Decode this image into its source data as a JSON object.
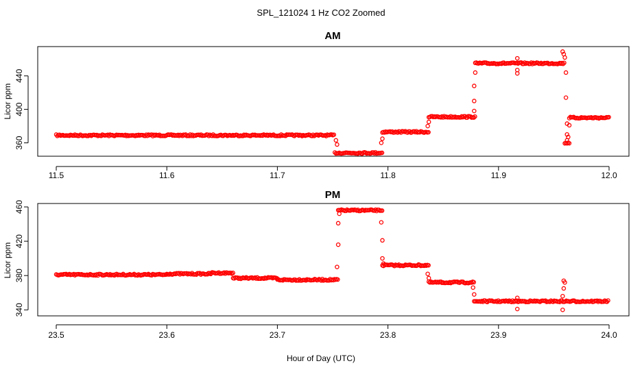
{
  "figure": {
    "title": "SPL_121024  1 Hz CO2 Zoomed",
    "xlabel": "Hour of Day (UTC)"
  },
  "colors": {
    "points": "#ff0000",
    "axes": "#000000",
    "background": "#ffffff"
  },
  "chart_data": [
    {
      "type": "scatter",
      "title": "AM",
      "xlabel": "",
      "ylabel": "Licor ppm",
      "xlim": [
        11.5,
        12.0
      ],
      "ylim": [
        344,
        475
      ],
      "xticks": [
        "11.5",
        "11.6",
        "11.7",
        "11.8",
        "11.9",
        "12.0"
      ],
      "yticks": [
        "360",
        "400",
        "440"
      ],
      "grid": false,
      "levels": [
        [
          11.5,
          11.752,
          369
        ],
        [
          11.752,
          11.795,
          348
        ],
        [
          11.795,
          11.837,
          373
        ],
        [
          11.837,
          11.879,
          391
        ],
        [
          11.879,
          11.96,
          455
        ],
        [
          11.96,
          11.964,
          360
        ],
        [
          11.964,
          12.0,
          390
        ]
      ],
      "outliers": [
        [
          11.753,
          363
        ],
        [
          11.754,
          358
        ],
        [
          11.794,
          360
        ],
        [
          11.795,
          365
        ],
        [
          11.836,
          380
        ],
        [
          11.837,
          385
        ],
        [
          11.878,
          398
        ],
        [
          11.878,
          410
        ],
        [
          11.878,
          428
        ],
        [
          11.879,
          444
        ],
        [
          11.917,
          443
        ],
        [
          11.917,
          447
        ],
        [
          11.917,
          461
        ],
        [
          11.958,
          469
        ],
        [
          11.959,
          466
        ],
        [
          11.96,
          462
        ],
        [
          11.961,
          444
        ],
        [
          11.961,
          414
        ],
        [
          11.962,
          383
        ],
        [
          11.962,
          370
        ],
        [
          11.962,
          363
        ],
        [
          11.963,
          367
        ],
        [
          11.964,
          381
        ]
      ]
    },
    {
      "type": "scatter",
      "title": "PM",
      "xlabel": "",
      "ylabel": "Licor ppm",
      "xlim": [
        23.5,
        24.0
      ],
      "ylim": [
        333,
        464
      ],
      "xticks": [
        "23.5",
        "23.6",
        "23.7",
        "23.8",
        "23.9",
        "24.0"
      ],
      "yticks": [
        "340",
        "380",
        "420",
        "460"
      ],
      "grid": false,
      "levels": [
        [
          23.5,
          23.6,
          381
        ],
        [
          23.6,
          23.64,
          382
        ],
        [
          23.64,
          23.66,
          383
        ],
        [
          23.66,
          23.7,
          377
        ],
        [
          23.7,
          23.755,
          375
        ],
        [
          23.755,
          23.795,
          456
        ],
        [
          23.795,
          23.837,
          392
        ],
        [
          23.837,
          23.878,
          372
        ],
        [
          23.878,
          24.0,
          350
        ]
      ],
      "outliers": [
        [
          23.754,
          390
        ],
        [
          23.755,
          416
        ],
        [
          23.755,
          441
        ],
        [
          23.756,
          452
        ],
        [
          23.794,
          442
        ],
        [
          23.795,
          421
        ],
        [
          23.795,
          400
        ],
        [
          23.796,
          394
        ],
        [
          23.836,
          382
        ],
        [
          23.837,
          377
        ],
        [
          23.877,
          366
        ],
        [
          23.878,
          358
        ],
        [
          23.917,
          341
        ],
        [
          23.917,
          354
        ],
        [
          23.958,
          340
        ],
        [
          23.958,
          356
        ],
        [
          23.959,
          365
        ],
        [
          23.959,
          374
        ],
        [
          23.96,
          372
        ]
      ]
    }
  ]
}
